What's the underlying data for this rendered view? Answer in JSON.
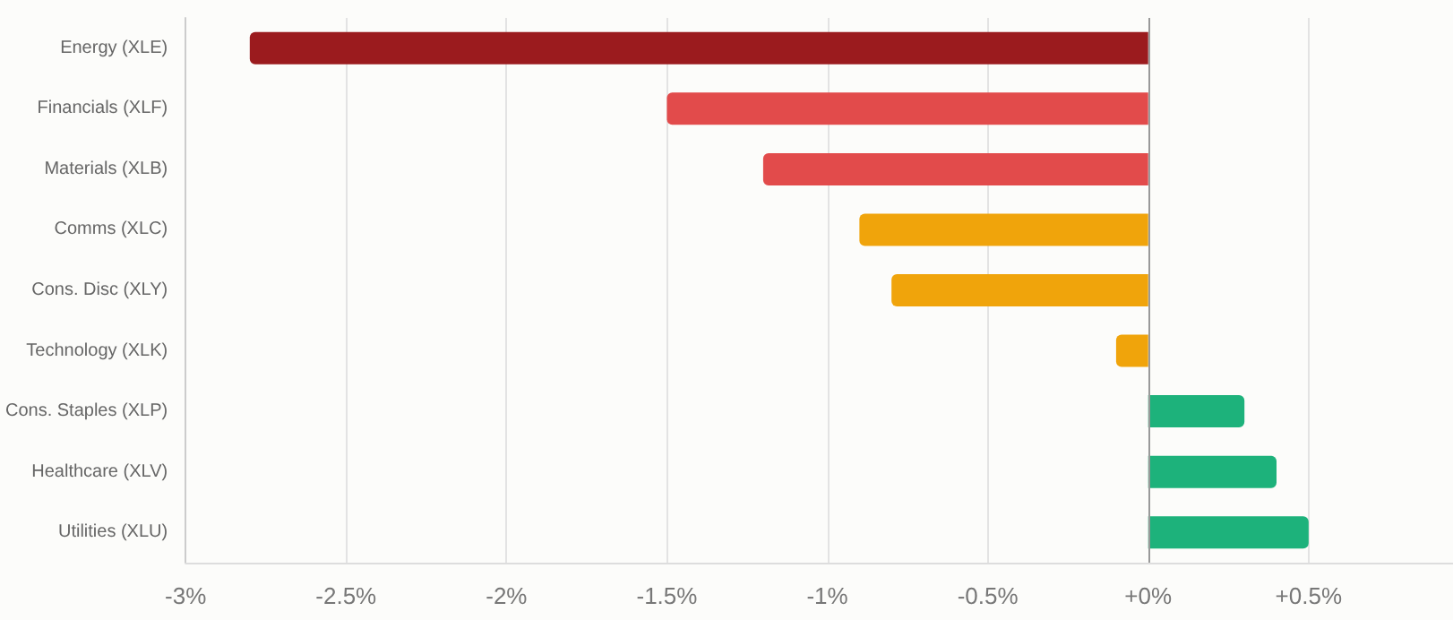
{
  "chart_data": {
    "type": "bar",
    "orientation": "horizontal",
    "categories": [
      "Energy (XLE)",
      "Financials (XLF)",
      "Materials (XLB)",
      "Comms (XLC)",
      "Cons. Disc (XLY)",
      "Technology (XLK)",
      "Cons. Staples (XLP)",
      "Healthcare (XLV)",
      "Utilities (XLU)"
    ],
    "values": [
      -2.8,
      -1.5,
      -1.2,
      -0.9,
      -0.8,
      -0.1,
      0.3,
      0.4,
      0.5
    ],
    "colors": [
      "#9b1b1e",
      "#e24b4b",
      "#e24b4b",
      "#f0a40b",
      "#f0a40b",
      "#f0a40b",
      "#1db27b",
      "#1db27b",
      "#1db27b"
    ],
    "xlim": [
      -3,
      0.95
    ],
    "xticks": [
      {
        "value": -3,
        "label": "-3%"
      },
      {
        "value": -2.5,
        "label": "-2.5%"
      },
      {
        "value": -2,
        "label": "-2%"
      },
      {
        "value": -1.5,
        "label": "-1.5%"
      },
      {
        "value": -1,
        "label": "-1%"
      },
      {
        "value": -0.5,
        "label": "-0.5%"
      },
      {
        "value": 0,
        "label": "+0%"
      },
      {
        "value": 0.5,
        "label": "+0.5%"
      }
    ],
    "grid": "x"
  }
}
